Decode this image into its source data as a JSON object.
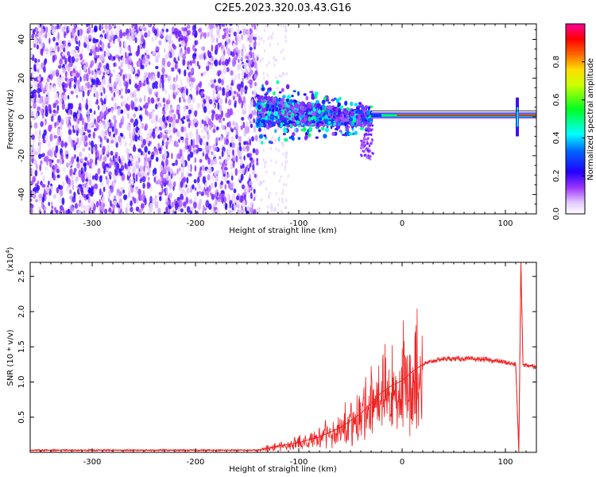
{
  "figure": {
    "title": "C2E5.2023.320.03.43.G16"
  },
  "chart_data": [
    {
      "type": "heatmap",
      "xlabel": "Height of straight line (km)",
      "ylabel": "Frequency (Hz)",
      "xlim": [
        -360,
        130
      ],
      "ylim": [
        -50,
        48
      ],
      "xticks": [
        -300,
        -200,
        -100,
        0,
        100
      ],
      "yticks": [
        -40,
        -20,
        0,
        20,
        40
      ],
      "colorbar": {
        "label": "Normalized spectral amplitude",
        "range": [
          0,
          1
        ],
        "ticks": [
          "0.0",
          "0.2",
          "0.4",
          "0.6",
          "0.8"
        ],
        "colors": [
          "#ffffff",
          "#cc88ff",
          "#7a00ff",
          "#0000ff",
          "#00ffff",
          "#00ff00",
          "#ffff00",
          "#ff8800",
          "#ff0000",
          "#ff00aa"
        ]
      },
      "regions": [
        {
          "x": [
            -360,
            -140
          ],
          "y": [
            -50,
            48
          ],
          "level": "low-noise"
        },
        {
          "x": [
            -140,
            -30
          ],
          "y": [
            -10,
            14
          ],
          "level": "moderate-signal"
        },
        {
          "x": [
            -30,
            130
          ],
          "y": [
            -2,
            3
          ],
          "level": "strong-line"
        }
      ]
    },
    {
      "type": "line",
      "xlabel": "Height of straight line (km)",
      "ylabel": "SNR (10 * v/v)",
      "yscale_label": "(x10",
      "yscale_exp": "4",
      "yscale_close": ")",
      "xlim": [
        -360,
        130
      ],
      "ylim": [
        0,
        27000
      ],
      "xticks": [
        -300,
        -200,
        -100,
        0,
        100
      ],
      "yticks": [
        "0.5",
        "1.0",
        "1.5",
        "2.0",
        "2.5"
      ],
      "line_color": "#ee2222",
      "series": [
        {
          "x": [
            -360,
            -300,
            -200,
            -140,
            -120,
            -100,
            -80,
            -60,
            -50,
            -40,
            -30,
            -20,
            -10,
            0,
            10,
            20,
            30,
            40,
            60,
            80,
            90,
            100,
            105,
            110,
            113,
            115,
            117,
            120,
            125,
            130
          ],
          "y": [
            300,
            300,
            300,
            300,
            900,
            1400,
            2200,
            3500,
            4500,
            5500,
            7000,
            8500,
            9500,
            10200,
            11500,
            12500,
            13000,
            13300,
            13300,
            13200,
            13000,
            12800,
            12600,
            12500,
            0,
            27000,
            12500,
            12400,
            12300,
            12200
          ]
        }
      ]
    }
  ]
}
